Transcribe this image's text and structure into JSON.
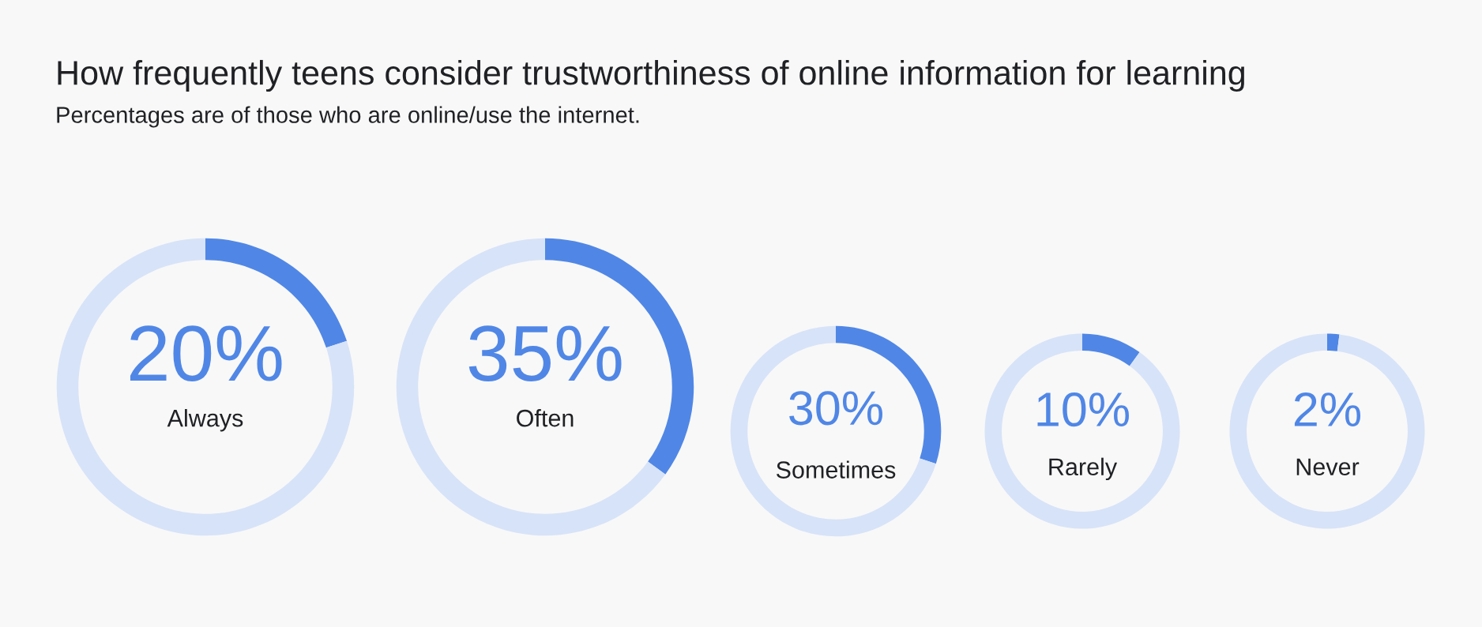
{
  "chart_data": [
    {
      "type": "donut",
      "title": "How frequently teens consider trustworthiness of online information for learning",
      "subtitle": "Percentages are of those who are online/use the internet.",
      "xlabel": "Always",
      "categories": [
        null,
        null
      ],
      "values": [
        20,
        80
      ],
      "value_labels": [
        "20%",
        null
      ],
      "colors": [
        "#5087e6",
        "#d7e3f8"
      ]
    },
    {
      "type": "donut",
      "xlabel": "Often",
      "categories": [
        null,
        null
      ],
      "values": [
        35,
        65
      ],
      "value_labels": [
        "35%",
        null
      ],
      "colors": [
        "#5087e6",
        "#d7e3f8"
      ]
    },
    {
      "type": "donut",
      "xlabel": "Sometimes",
      "categories": [
        null,
        null
      ],
      "values": [
        30,
        70
      ],
      "value_labels": [
        "30%",
        null
      ],
      "colors": [
        "#5087e6",
        "#d7e3f8"
      ]
    },
    {
      "type": "donut",
      "xlabel": "Rarely",
      "categories": [
        null,
        null
      ],
      "values": [
        10,
        90
      ],
      "value_labels": [
        "10%",
        null
      ],
      "colors": [
        "#5087e6",
        "#d7e3f8"
      ]
    },
    {
      "type": "donut",
      "xlabel": "Never",
      "categories": [
        null,
        null
      ],
      "values": [
        2,
        98
      ],
      "value_labels": [
        "2%",
        null
      ],
      "colors": [
        "#5087e6",
        "#d7e3f8"
      ]
    }
  ]
}
